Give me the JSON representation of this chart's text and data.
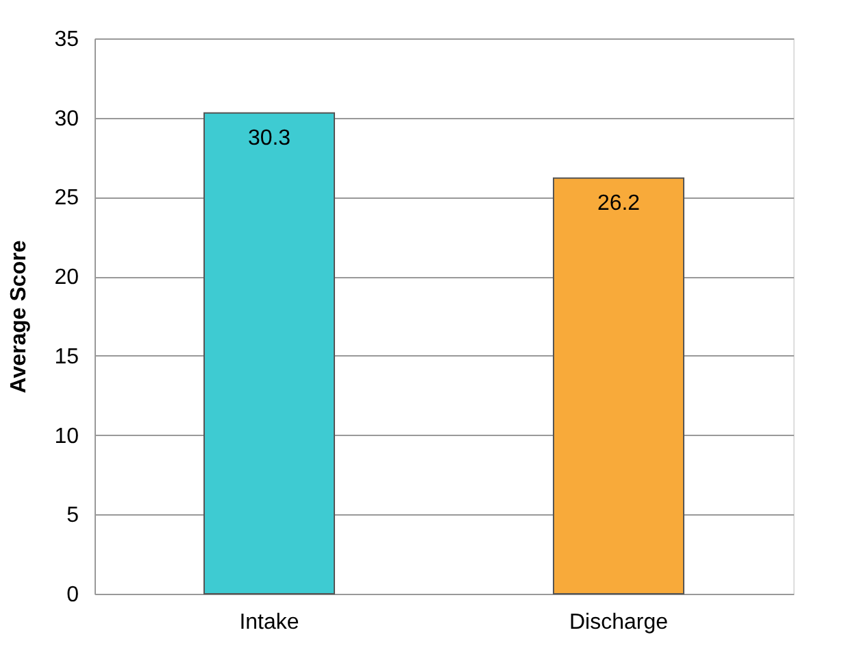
{
  "chart_data": {
    "type": "bar",
    "ylabel": "Average Score",
    "categories": [
      "Intake",
      "Discharge"
    ],
    "values": [
      30.3,
      26.2
    ],
    "colors": [
      "#3ecbd2",
      "#f8aa3a"
    ],
    "ylim": [
      0,
      35
    ],
    "yticks": [
      0,
      5,
      10,
      15,
      20,
      25,
      30,
      35
    ],
    "grid": "y",
    "data_labels": true
  }
}
